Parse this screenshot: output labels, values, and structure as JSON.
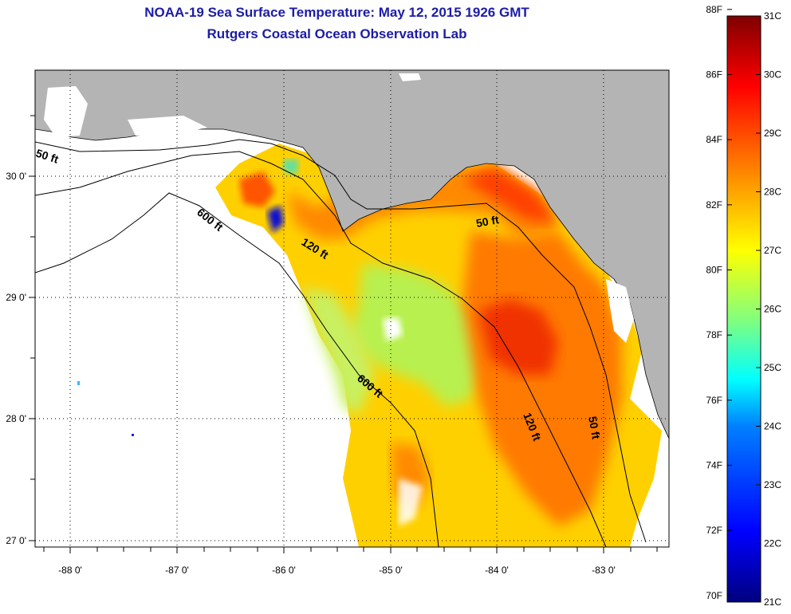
{
  "title": "NOAA-19 Sea Surface Temperature:  May 12, 2015 1926 GMT",
  "subtitle": "Rutgers Coastal Ocean Observation Lab",
  "map": {
    "lon_range": [
      -88.35,
      -82.35
    ],
    "lat_range": [
      26.95,
      30.85
    ],
    "lon_ticks": [
      "-88 0'",
      "-87 0'",
      "-86 0'",
      "-85 0'",
      "-84 0'",
      "-83 0'"
    ],
    "lat_ticks": [
      "30 0'",
      "29 0'",
      "28 0'",
      "27 0'"
    ],
    "contour_labels": [
      "50 ft",
      "600 ft",
      "120 ft",
      "50 ft",
      "600 ft",
      "120 ft",
      "50 ft"
    ],
    "colors": {
      "land": "#b4b4b4",
      "no_data": "#ffffff"
    }
  },
  "colorbar": {
    "fahrenheit": [
      "88F",
      "86F",
      "84F",
      "82F",
      "80F",
      "78F",
      "76F",
      "74F",
      "72F",
      "70F"
    ],
    "celsius": [
      "31C",
      "30C",
      "29C",
      "28C",
      "27C",
      "26C",
      "25C",
      "24C",
      "23C",
      "22C",
      "21C"
    ],
    "range_c": [
      21,
      31
    ],
    "stops": [
      "#00007f",
      "#0000ff",
      "#0080ff",
      "#00ffff",
      "#80ff80",
      "#ffff00",
      "#ff8000",
      "#ff0000",
      "#7f0000"
    ]
  }
}
